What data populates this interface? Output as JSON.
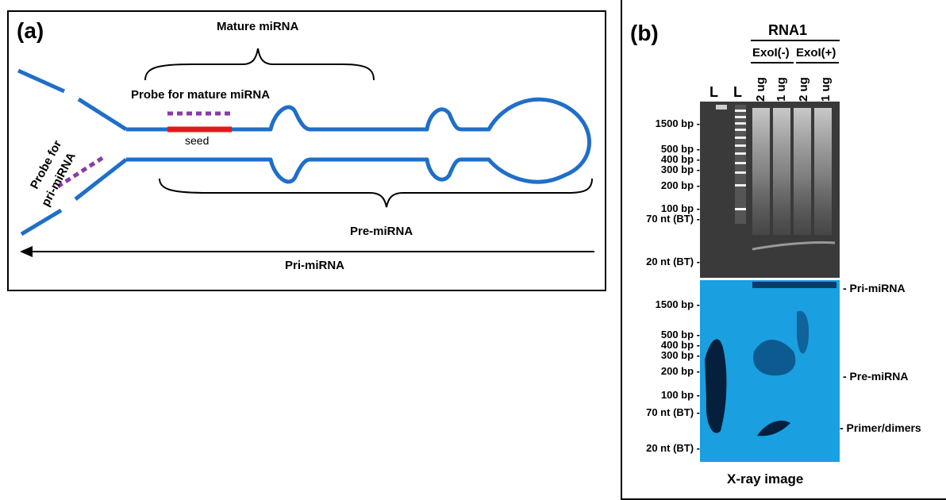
{
  "panel_a": {
    "letter": "(a)",
    "labels": {
      "mature_mirna": "Mature miRNA",
      "probe_mature": "Probe for mature miRNA",
      "seed": "seed",
      "probe_pri_line1": "Probe for",
      "probe_pri_line2": "pri-miRNA",
      "pre_mirna": "Pre-miRNA",
      "pri_mirna": "Pri-miRNA"
    },
    "colors": {
      "strand": "#1f6fc9",
      "seed": "#e31a1a",
      "probe": "#8a3aa8"
    }
  },
  "panel_b": {
    "letter": "(b)",
    "sample_header": "RNA1",
    "groups": [
      "ExoI(-)",
      "ExoI(+)"
    ],
    "lanes": [
      "L",
      "L",
      "2 ug",
      "1 ug",
      "2 ug",
      "1 ug"
    ],
    "gel_markers": [
      "1500 bp -",
      "500 bp -",
      "400 bp -",
      "300 bp -",
      "200 bp -",
      "100 bp -",
      "70 nt (BT) -",
      "20 nt (BT) -"
    ],
    "xray_markers": [
      "1500 bp -",
      "500 bp -",
      "400 bp -",
      "300 bp -",
      "200 bp -",
      "100 bp -",
      "70 nt (BT) -",
      "20 nt (BT) -"
    ],
    "xray_bands": [
      "- Pri-miRNA",
      "- Pre-miRNA",
      "- Primer/dimers"
    ],
    "xray_caption": "X-ray image",
    "colors": {
      "gel_bg": "#3a3a3a",
      "xray_bg": "#1a9fe0"
    }
  }
}
